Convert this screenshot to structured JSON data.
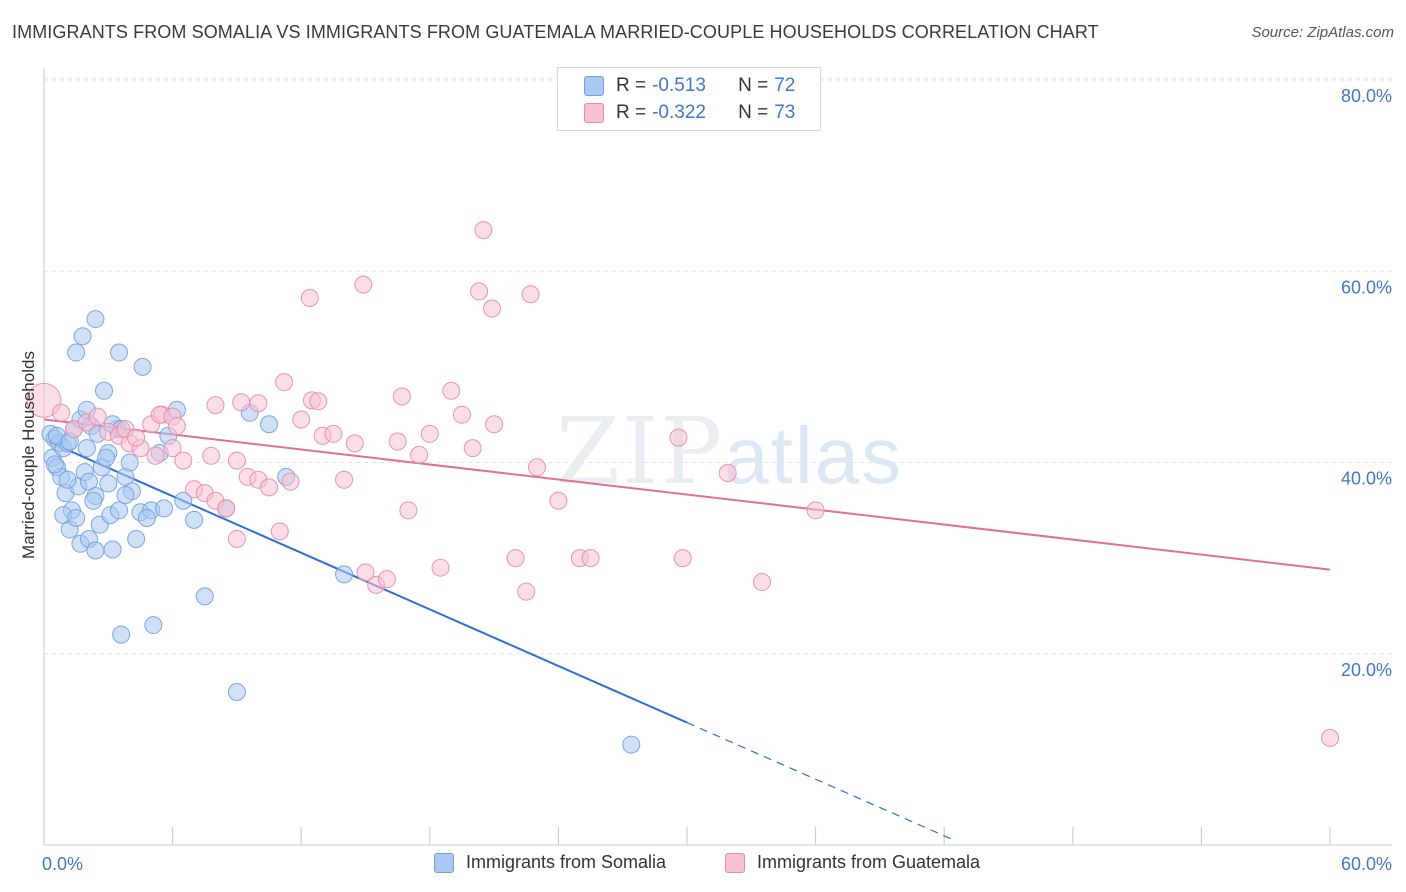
{
  "title": "IMMIGRANTS FROM SOMALIA VS IMMIGRANTS FROM GUATEMALA MARRIED-COUPLE HOUSEHOLDS CORRELATION CHART",
  "source": "Source: ZipAtlas.com",
  "watermark": {
    "zip": "ZIP",
    "atlas": "atlas"
  },
  "legend": {
    "rows": [
      {
        "r_label": "R =",
        "r_value": "-0.513",
        "n_label": "N =",
        "n_value": "72",
        "color": "#aac8f0",
        "border": "#6f9fe0"
      },
      {
        "r_label": "R =",
        "r_value": "-0.322",
        "n_label": "N =",
        "n_value": "73",
        "color": "#f7c3d3",
        "border": "#e88aa8"
      }
    ]
  },
  "bottom_legend": [
    {
      "label": "Immigrants from Somalia",
      "color": "#aac8f0",
      "border": "#6f9fe0"
    },
    {
      "label": "Immigrants from Guatemala",
      "color": "#f7c3d3",
      "border": "#e88aa8"
    }
  ],
  "chart_data": {
    "type": "scatter",
    "ylabel": "Married-couple Households",
    "xlim": [
      0,
      60
    ],
    "ylim": [
      0,
      80
    ],
    "x_ticks": [
      "0.0%",
      "60.0%"
    ],
    "y_ticks": [
      {
        "value": 20,
        "label": "20.0%"
      },
      {
        "value": 40,
        "label": "40.0%"
      },
      {
        "value": 60,
        "label": "60.0%"
      },
      {
        "value": 80,
        "label": "80.0%"
      }
    ],
    "grid": true,
    "series": [
      {
        "name": "Immigrants from Somalia",
        "color": "#aac8f0",
        "stroke": "#6f9fe0",
        "trend_color": "#2f6fd1",
        "trend": {
          "x0": 0.2,
          "y0": 42.2,
          "x1": 30.0,
          "y1": 12.8,
          "dash_x_end": 42.5
        },
        "points": [
          [
            0.3,
            43.0
          ],
          [
            0.5,
            42.5
          ],
          [
            0.7,
            42.0
          ],
          [
            0.4,
            40.5
          ],
          [
            0.6,
            39.5
          ],
          [
            0.9,
            41.5
          ],
          [
            1.1,
            42.0
          ],
          [
            1.4,
            43.5
          ],
          [
            1.7,
            44.5
          ],
          [
            2.0,
            45.5
          ],
          [
            2.2,
            43.8
          ],
          [
            2.5,
            43.0
          ],
          [
            0.8,
            38.5
          ],
          [
            1.0,
            36.8
          ],
          [
            1.3,
            35.0
          ],
          [
            1.6,
            37.5
          ],
          [
            1.9,
            39.0
          ],
          [
            2.1,
            38.0
          ],
          [
            2.4,
            36.5
          ],
          [
            2.7,
            39.5
          ],
          [
            3.0,
            41.0
          ],
          [
            3.4,
            43.5
          ],
          [
            0.5,
            39.8
          ],
          [
            0.9,
            34.5
          ],
          [
            1.2,
            33.0
          ],
          [
            1.7,
            31.5
          ],
          [
            2.1,
            32.0
          ],
          [
            2.6,
            33.5
          ],
          [
            3.1,
            34.5
          ],
          [
            3.5,
            35.0
          ],
          [
            3.8,
            38.5
          ],
          [
            4.1,
            37.0
          ],
          [
            4.5,
            34.8
          ],
          [
            5.0,
            35.0
          ],
          [
            5.4,
            41.0
          ],
          [
            5.8,
            42.8
          ],
          [
            6.2,
            45.5
          ],
          [
            6.5,
            36.0
          ],
          [
            7.0,
            34.0
          ],
          [
            7.5,
            26.0
          ],
          [
            2.4,
            30.8
          ],
          [
            3.2,
            30.9
          ],
          [
            3.6,
            22.0
          ],
          [
            4.3,
            32.0
          ],
          [
            5.1,
            23.0
          ],
          [
            1.5,
            51.5
          ],
          [
            1.8,
            53.2
          ],
          [
            2.4,
            55.0
          ],
          [
            3.5,
            51.5
          ],
          [
            4.6,
            50.0
          ],
          [
            2.8,
            47.5
          ],
          [
            3.2,
            44.0
          ],
          [
            3.6,
            43.5
          ],
          [
            0.6,
            42.8
          ],
          [
            1.2,
            42.2
          ],
          [
            2.0,
            41.5
          ],
          [
            2.9,
            40.5
          ],
          [
            4.0,
            40.0
          ],
          [
            9.0,
            16.0
          ],
          [
            8.5,
            35.2
          ],
          [
            9.6,
            45.2
          ],
          [
            10.5,
            44.0
          ],
          [
            11.3,
            38.5
          ],
          [
            14.0,
            28.3
          ],
          [
            27.4,
            10.5
          ],
          [
            1.1,
            38.2
          ],
          [
            1.5,
            34.2
          ],
          [
            2.3,
            36.0
          ],
          [
            3.0,
            37.8
          ],
          [
            3.8,
            36.6
          ],
          [
            4.8,
            34.2
          ],
          [
            5.6,
            35.2
          ]
        ]
      },
      {
        "name": "Immigrants from Guatemala",
        "color": "#f7c3d3",
        "stroke": "#e88aa8",
        "trend_color": "#e06f97",
        "trend": {
          "x0": 0.0,
          "y0": 44.5,
          "x1": 60.0,
          "y1": 28.8
        },
        "points": [
          [
            0.0,
            46.5
          ],
          [
            0.8,
            45.2
          ],
          [
            1.4,
            43.5
          ],
          [
            2.0,
            44.2
          ],
          [
            2.5,
            44.8
          ],
          [
            3.0,
            43.2
          ],
          [
            3.5,
            42.8
          ],
          [
            4.0,
            42.0
          ],
          [
            4.5,
            41.5
          ],
          [
            5.0,
            44.0
          ],
          [
            5.5,
            45.0
          ],
          [
            6.0,
            41.5
          ],
          [
            6.5,
            40.2
          ],
          [
            7.0,
            37.2
          ],
          [
            7.5,
            36.8
          ],
          [
            8.0,
            36.0
          ],
          [
            8.5,
            35.2
          ],
          [
            9.0,
            32.0
          ],
          [
            9.5,
            38.5
          ],
          [
            10.0,
            38.2
          ],
          [
            10.5,
            37.4
          ],
          [
            11.0,
            32.8
          ],
          [
            11.5,
            38.0
          ],
          [
            12.0,
            44.5
          ],
          [
            12.5,
            46.5
          ],
          [
            13.0,
            42.8
          ],
          [
            13.5,
            43.0
          ],
          [
            14.0,
            38.2
          ],
          [
            14.5,
            42.0
          ],
          [
            15.0,
            28.5
          ],
          [
            15.5,
            27.2
          ],
          [
            16.0,
            27.8
          ],
          [
            16.5,
            42.2
          ],
          [
            17.0,
            35.0
          ],
          [
            17.5,
            40.8
          ],
          [
            18.0,
            43.0
          ],
          [
            18.5,
            29.0
          ],
          [
            19.0,
            47.5
          ],
          [
            19.5,
            45.0
          ],
          [
            20.0,
            41.5
          ],
          [
            21.0,
            44.0
          ],
          [
            22.0,
            30.0
          ],
          [
            22.5,
            26.5
          ],
          [
            23.0,
            39.5
          ],
          [
            24.0,
            36.0
          ],
          [
            25.0,
            30.0
          ],
          [
            12.4,
            57.2
          ],
          [
            14.9,
            58.6
          ],
          [
            20.3,
            57.9
          ],
          [
            20.9,
            56.1
          ],
          [
            22.7,
            57.6
          ],
          [
            20.5,
            64.3
          ],
          [
            10.0,
            46.2
          ],
          [
            9.2,
            46.3
          ],
          [
            8.0,
            46.0
          ],
          [
            11.2,
            48.4
          ],
          [
            12.8,
            46.4
          ],
          [
            16.7,
            46.9
          ],
          [
            5.4,
            45.0
          ],
          [
            6.0,
            44.8
          ],
          [
            3.8,
            43.5
          ],
          [
            4.3,
            42.6
          ],
          [
            5.2,
            40.7
          ],
          [
            7.8,
            40.7
          ],
          [
            9.0,
            40.2
          ],
          [
            6.2,
            43.8
          ],
          [
            25.5,
            30.0
          ],
          [
            29.6,
            42.6
          ],
          [
            31.9,
            38.9
          ],
          [
            33.5,
            27.5
          ],
          [
            36.0,
            35.0
          ],
          [
            29.8,
            30.0
          ],
          [
            60.0,
            11.2
          ]
        ]
      }
    ]
  }
}
